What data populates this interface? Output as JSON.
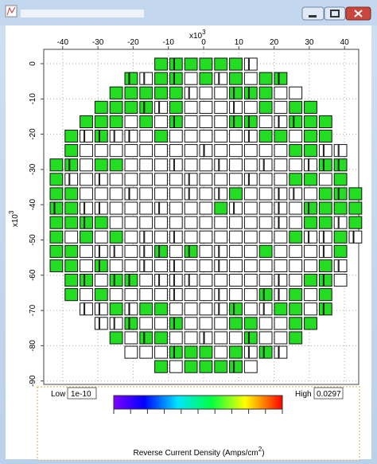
{
  "plot": {
    "x_axis": {
      "ticks": [
        -40,
        -30,
        -20,
        -10,
        0,
        10,
        20,
        30,
        40
      ],
      "multiplier": {
        "base": "x10",
        "exponent": "3"
      }
    },
    "y_axis": {
      "ticks": [
        0,
        -10,
        -20,
        -30,
        -40,
        -50,
        -60,
        -70,
        -80,
        -90
      ],
      "multiplier": {
        "base": "x10",
        "exponent": "3"
      }
    }
  },
  "legend": {
    "low_label": "Low",
    "low_value": "1e-10",
    "high_label": "High",
    "high_value": "0.0297",
    "title": {
      "text": "Reverse Current Density (Amps/cm",
      "superscript": "2",
      "close": ")"
    }
  }
}
